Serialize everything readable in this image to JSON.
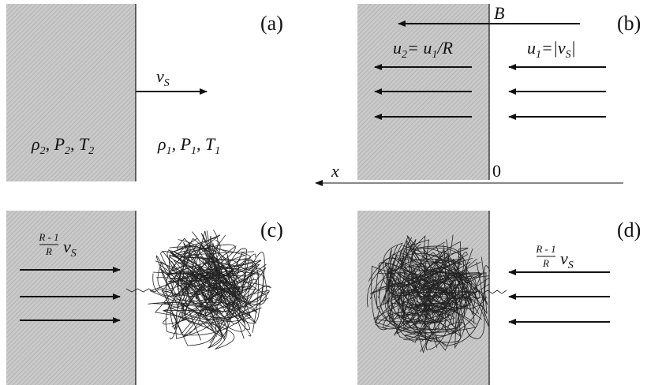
{
  "panels": {
    "a": {
      "label": "(a)",
      "velocity": {
        "base": "v",
        "sub": "S"
      },
      "separator": ", ",
      "left_state": [
        {
          "base": "ρ",
          "sub": "2"
        },
        {
          "base": "P",
          "sub": "2"
        },
        {
          "base": "T",
          "sub": "2"
        }
      ],
      "right_state": [
        {
          "base": "ρ",
          "sub": "1"
        },
        {
          "base": "P",
          "sub": "1"
        },
        {
          "base": "T",
          "sub": "1"
        }
      ]
    },
    "b": {
      "label": "(b)",
      "field": "B",
      "axis": "x",
      "origin": "0",
      "downstream": {
        "u": "u",
        "sub2": "2",
        "eq": "= ",
        "sub1": "1",
        "rest": "/R"
      },
      "upstream": {
        "u": "u",
        "sub1": "1",
        "eq": "=|",
        "v": "v",
        "sub": "S",
        "close": "|"
      }
    },
    "c": {
      "label": "(c)",
      "numerator": "R - 1",
      "denominator": "R",
      "velocity": {
        "base": "v",
        "sub": "S"
      }
    },
    "d": {
      "label": "(d)",
      "numerator": "R - 1",
      "denominator": "R",
      "velocity": {
        "base": "v",
        "sub": "S"
      }
    }
  }
}
